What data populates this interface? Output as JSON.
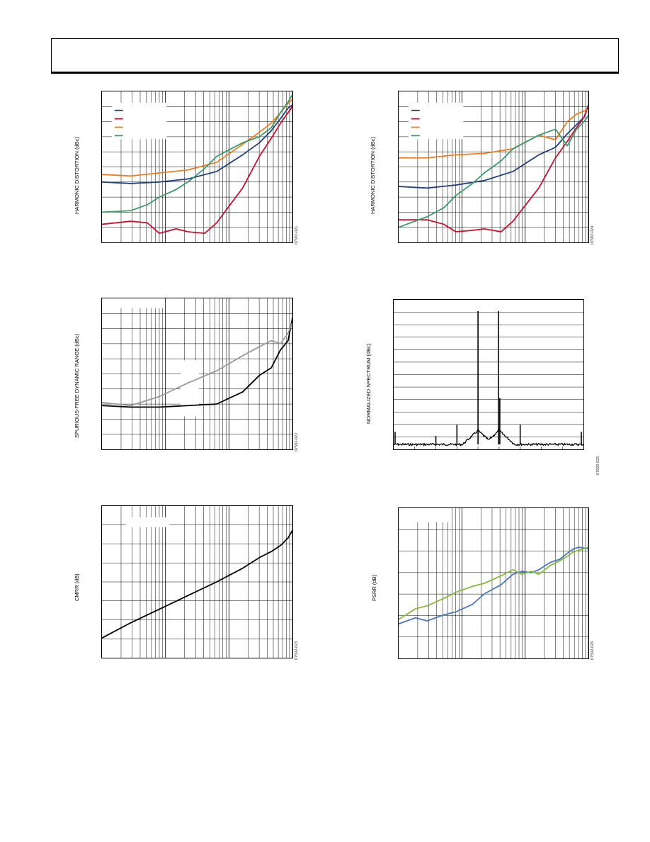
{
  "chart_data": [
    {
      "id": "hd1",
      "type": "line",
      "ylabel": "HARMONIC DISTORTION (dBc)",
      "figure_id": "07592-021",
      "xscale": "log",
      "grid": true,
      "legend": "top-left",
      "series": [
        {
          "color": "#1f3f7a",
          "x": [
            1,
            2,
            4,
            8,
            16,
            30,
            45,
            60,
            75,
            90,
            100
          ],
          "y": [
            0.4,
            0.39,
            0.4,
            0.42,
            0.47,
            0.58,
            0.66,
            0.74,
            0.82,
            0.89,
            0.91
          ]
        },
        {
          "color": "#c8102e",
          "x": [
            1,
            2,
            3,
            4,
            6,
            8,
            12,
            16,
            30,
            45,
            60,
            75,
            90,
            100
          ],
          "y": [
            0.12,
            0.14,
            0.13,
            0.06,
            0.09,
            0.07,
            0.06,
            0.13,
            0.36,
            0.57,
            0.69,
            0.79,
            0.86,
            0.9
          ]
        },
        {
          "color": "#f07c1a",
          "x": [
            1,
            2,
            4,
            8,
            16,
            30,
            45,
            60,
            75,
            90,
            100
          ],
          "y": [
            0.45,
            0.44,
            0.46,
            0.48,
            0.53,
            0.65,
            0.73,
            0.79,
            0.86,
            0.92,
            0.95
          ]
        },
        {
          "color": "#3a9a6e",
          "x": [
            1,
            2,
            3,
            4,
            6,
            8,
            12,
            16,
            30,
            45,
            60,
            75,
            90,
            100
          ],
          "y": [
            0.2,
            0.21,
            0.25,
            0.3,
            0.35,
            0.4,
            0.49,
            0.57,
            0.66,
            0.7,
            0.76,
            0.86,
            0.93,
            0.98
          ]
        }
      ]
    },
    {
      "id": "hd2",
      "type": "line",
      "ylabel": "HARMONIC DISTORTION (dBc)",
      "figure_id": "07592-024",
      "xscale": "log",
      "grid": true,
      "legend": "top-left",
      "series": [
        {
          "color": "#1f3f7a",
          "x": [
            1,
            2,
            4,
            8,
            16,
            30,
            45,
            60,
            75,
            90,
            100
          ],
          "y": [
            0.37,
            0.36,
            0.38,
            0.41,
            0.47,
            0.58,
            0.63,
            0.72,
            0.78,
            0.83,
            0.91
          ]
        },
        {
          "color": "#c8102e",
          "x": [
            1,
            2,
            3,
            4,
            6,
            8,
            12,
            16,
            30,
            45,
            60,
            75,
            90,
            100
          ],
          "y": [
            0.15,
            0.15,
            0.12,
            0.07,
            0.08,
            0.09,
            0.07,
            0.14,
            0.36,
            0.56,
            0.67,
            0.76,
            0.83,
            0.9
          ]
        },
        {
          "color": "#f07c1a",
          "x": [
            1,
            2,
            4,
            8,
            16,
            30,
            45,
            60,
            75,
            90,
            100
          ],
          "y": [
            0.56,
            0.56,
            0.58,
            0.59,
            0.62,
            0.71,
            0.68,
            0.8,
            0.85,
            0.87,
            0.88
          ]
        },
        {
          "color": "#3a9a6e",
          "x": [
            1,
            2,
            3,
            4,
            6,
            8,
            12,
            16,
            30,
            45,
            60,
            75,
            90,
            100
          ],
          "y": [
            0.1,
            0.17,
            0.23,
            0.31,
            0.39,
            0.46,
            0.54,
            0.62,
            0.71,
            0.75,
            0.64,
            0.75,
            0.8,
            0.84
          ]
        }
      ]
    },
    {
      "id": "sfdr",
      "type": "line",
      "ylabel": "SPURIOUS-FREE DYNAMIC RANGE (dBc)",
      "figure_id": "07592-022",
      "xscale": "log",
      "grid": true,
      "series": [
        {
          "color": "#000000",
          "x": [
            1,
            2,
            4,
            8,
            16,
            30,
            45,
            60,
            75,
            90,
            100
          ],
          "y": [
            0.29,
            0.28,
            0.28,
            0.29,
            0.3,
            0.38,
            0.49,
            0.54,
            0.66,
            0.72,
            0.87
          ]
        },
        {
          "color": "#999999",
          "x": [
            1,
            2,
            4,
            8,
            16,
            30,
            45,
            60,
            75,
            90,
            100
          ],
          "y": [
            0.31,
            0.29,
            0.35,
            0.44,
            0.52,
            0.62,
            0.68,
            0.72,
            0.7,
            0.77,
            0.84
          ]
        }
      ]
    },
    {
      "id": "spectrum",
      "type": "line",
      "ylabel": "NORMALIZED SPECTRUM (dBc)",
      "figure_id": "07592-025",
      "xscale": "linear",
      "grid": true
    },
    {
      "id": "cmrr",
      "type": "line",
      "ylabel": "CMRR (dB)",
      "figure_id": "07592-023",
      "xscale": "log",
      "grid": true,
      "series": [
        {
          "color": "#000000",
          "x": [
            1,
            2,
            4,
            8,
            16,
            30,
            45,
            60,
            75,
            90,
            100
          ],
          "y": [
            0.13,
            0.23,
            0.32,
            0.41,
            0.5,
            0.59,
            0.66,
            0.7,
            0.74,
            0.79,
            0.84
          ]
        }
      ]
    },
    {
      "id": "psrr",
      "type": "line",
      "ylabel": "PSRR (dB)",
      "figure_id": "07592-026",
      "xscale": "log",
      "grid": true,
      "series": [
        {
          "color": "#4a78b8",
          "x": [
            1,
            1.5,
            2,
            3,
            4,
            6,
            8,
            12,
            16,
            20,
            25,
            30,
            40,
            50,
            60,
            70,
            80,
            100
          ],
          "y": [
            0.23,
            0.27,
            0.25,
            0.29,
            0.31,
            0.36,
            0.43,
            0.49,
            0.56,
            0.58,
            0.57,
            0.59,
            0.64,
            0.66,
            0.7,
            0.73,
            0.74,
            0.73
          ]
        },
        {
          "color": "#8ab83a",
          "x": [
            1,
            1.5,
            2,
            3,
            4,
            6,
            8,
            12,
            16,
            20,
            25,
            30,
            40,
            50,
            60,
            70,
            80,
            100
          ],
          "y": [
            0.26,
            0.33,
            0.35,
            0.4,
            0.44,
            0.48,
            0.5,
            0.55,
            0.59,
            0.56,
            0.58,
            0.56,
            0.62,
            0.65,
            0.68,
            0.71,
            0.72,
            0.74
          ]
        }
      ]
    }
  ]
}
